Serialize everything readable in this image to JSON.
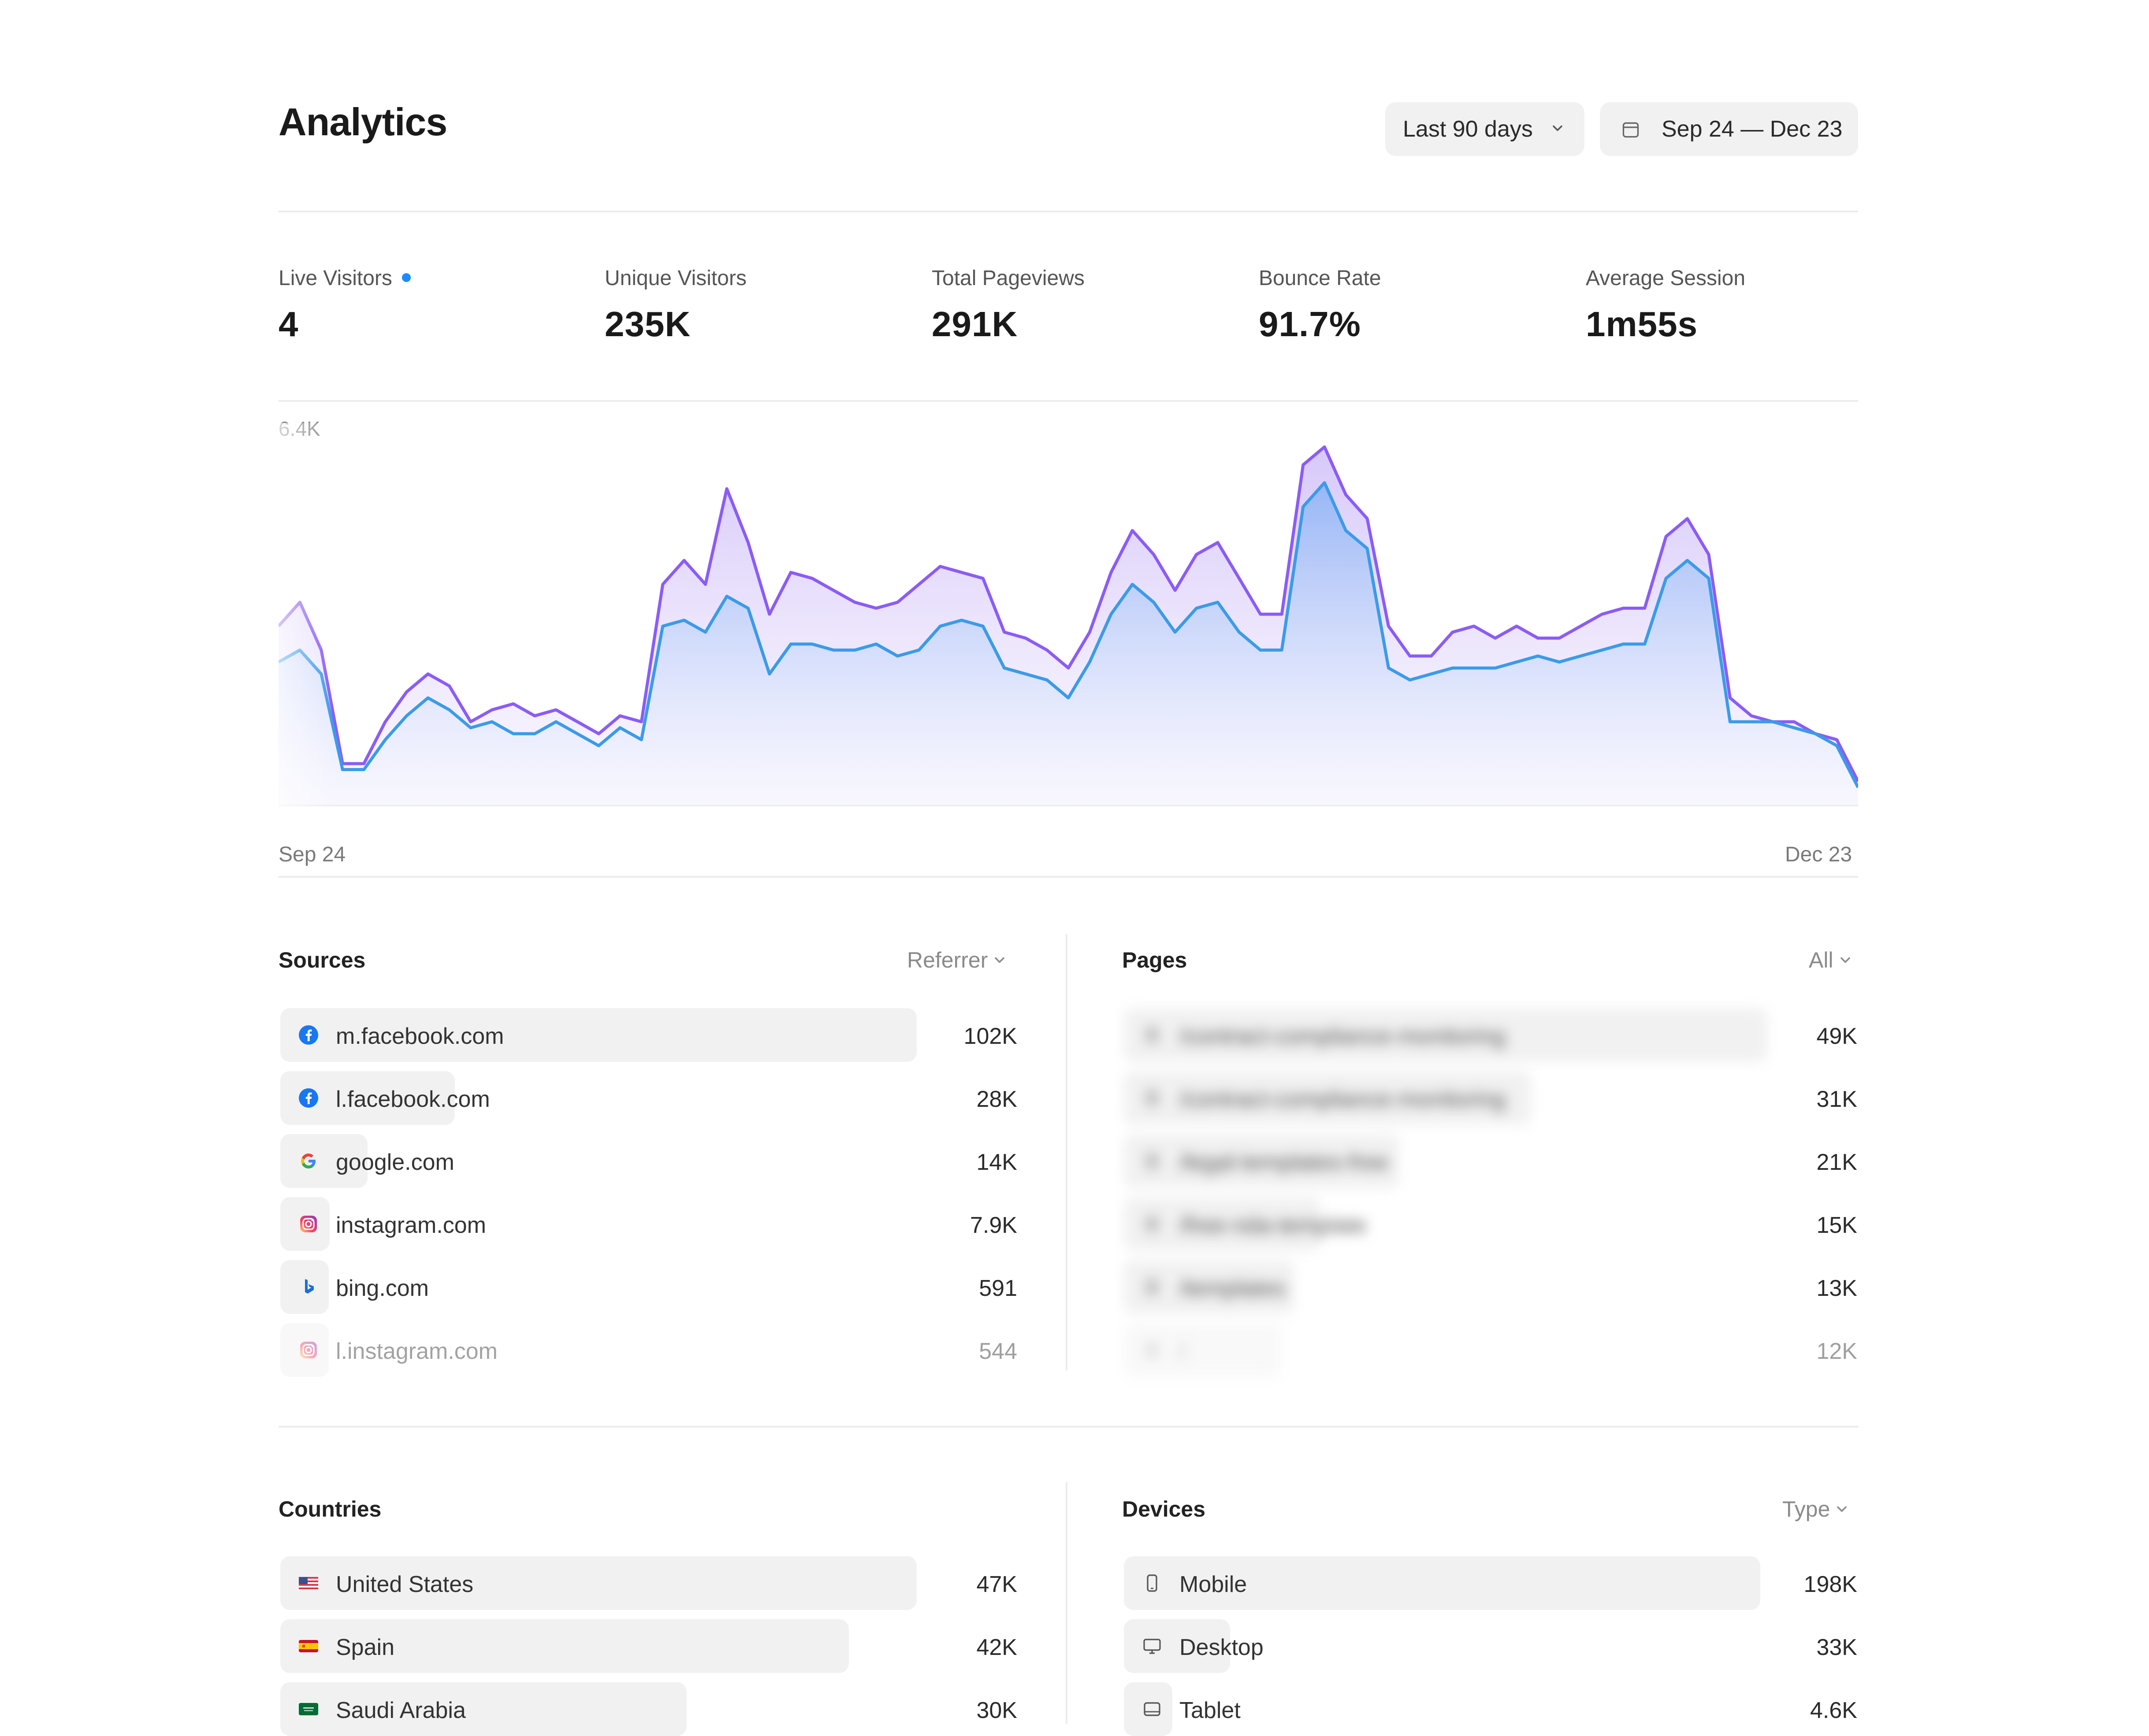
{
  "header": {
    "title": "Analytics",
    "range_select": "Last 90 days",
    "date_range": "Sep 24 — Dec 23"
  },
  "stats": [
    {
      "label": "Live Visitors",
      "value": "4"
    },
    {
      "label": "Unique Visitors",
      "value": "235K"
    },
    {
      "label": "Total Pageviews",
      "value": "291K"
    },
    {
      "label": "Bounce Rate",
      "value": "91.7%"
    },
    {
      "label": "Average Session",
      "value": "1m55s"
    }
  ],
  "chart_data": {
    "type": "area",
    "ymax_label": "6.4K",
    "ylim": [
      0,
      6400
    ],
    "x_start_label": "Sep 24",
    "x_end_label": "Dec 23",
    "series": [
      {
        "color": "#8b5cf6",
        "values": [
          3000,
          3400,
          2600,
          700,
          700,
          1400,
          1900,
          2200,
          2000,
          1400,
          1600,
          1700,
          1500,
          1600,
          1400,
          1200,
          1500,
          1400,
          3700,
          4100,
          3700,
          5300,
          4400,
          3200,
          3900,
          3800,
          3600,
          3400,
          3300,
          3400,
          3700,
          4000,
          3900,
          3800,
          2900,
          2800,
          2600,
          2300,
          2900,
          3900,
          4600,
          4200,
          3600,
          4200,
          4400,
          3800,
          3200,
          3200,
          5700,
          6000,
          5200,
          4800,
          3000,
          2500,
          2500,
          2900,
          3000,
          2800,
          3000,
          2800,
          2800,
          3000,
          3200,
          3300,
          3300,
          4500,
          4800,
          4200,
          1800,
          1500,
          1400,
          1400,
          1200,
          1100,
          400
        ]
      },
      {
        "color": "#3b9be8",
        "values": [
          2400,
          2600,
          2200,
          600,
          600,
          1100,
          1500,
          1800,
          1600,
          1300,
          1400,
          1200,
          1200,
          1400,
          1200,
          1000,
          1300,
          1100,
          3000,
          3100,
          2900,
          3500,
          3300,
          2200,
          2700,
          2700,
          2600,
          2600,
          2700,
          2500,
          2600,
          3000,
          3100,
          3000,
          2300,
          2200,
          2100,
          1800,
          2400,
          3200,
          3700,
          3400,
          2900,
          3300,
          3400,
          2900,
          2600,
          2600,
          5000,
          5400,
          4600,
          4300,
          2300,
          2100,
          2200,
          2300,
          2300,
          2300,
          2400,
          2500,
          2400,
          2500,
          2600,
          2700,
          2700,
          3800,
          4100,
          3800,
          1400,
          1400,
          1400,
          1300,
          1200,
          1000,
          300
        ]
      }
    ]
  },
  "sources": {
    "title": "Sources",
    "filter": "Referrer",
    "items": [
      {
        "label": "m.facebook.com",
        "value": "102K",
        "icon": "facebook-icon"
      },
      {
        "label": "l.facebook.com",
        "value": "28K",
        "icon": "facebook-icon"
      },
      {
        "label": "google.com",
        "value": "14K",
        "icon": "google-icon"
      },
      {
        "label": "instagram.com",
        "value": "7.9K",
        "icon": "instagram-icon"
      },
      {
        "label": "bing.com",
        "value": "591",
        "icon": "bing-icon"
      },
      {
        "label": "l.instagram.com",
        "value": "544",
        "icon": "instagram-icon"
      }
    ]
  },
  "pages": {
    "title": "Pages",
    "filter": "All",
    "items": [
      {
        "label": "/contract-compliance-monitoring",
        "value": "49K"
      },
      {
        "label": "/contract-compliance-monitoring",
        "value": "31K"
      },
      {
        "label": "/legal-templates-free",
        "value": "21K"
      },
      {
        "label": "/free-nda-template",
        "value": "15K"
      },
      {
        "label": "/templates",
        "value": "13K"
      },
      {
        "label": "/",
        "value": "12K"
      }
    ]
  },
  "countries": {
    "title": "Countries",
    "items": [
      {
        "label": "United States",
        "value": "47K",
        "icon": "us-flag-icon"
      },
      {
        "label": "Spain",
        "value": "42K",
        "icon": "spain-flag-icon"
      },
      {
        "label": "Saudi Arabia",
        "value": "30K",
        "icon": "saudi-flag-icon"
      }
    ]
  },
  "devices": {
    "title": "Devices",
    "filter": "Type",
    "items": [
      {
        "label": "Mobile",
        "value": "198K",
        "icon": "mobile-icon"
      },
      {
        "label": "Desktop",
        "value": "33K",
        "icon": "desktop-icon"
      },
      {
        "label": "Tablet",
        "value": "4.6K",
        "icon": "tablet-icon"
      }
    ]
  }
}
